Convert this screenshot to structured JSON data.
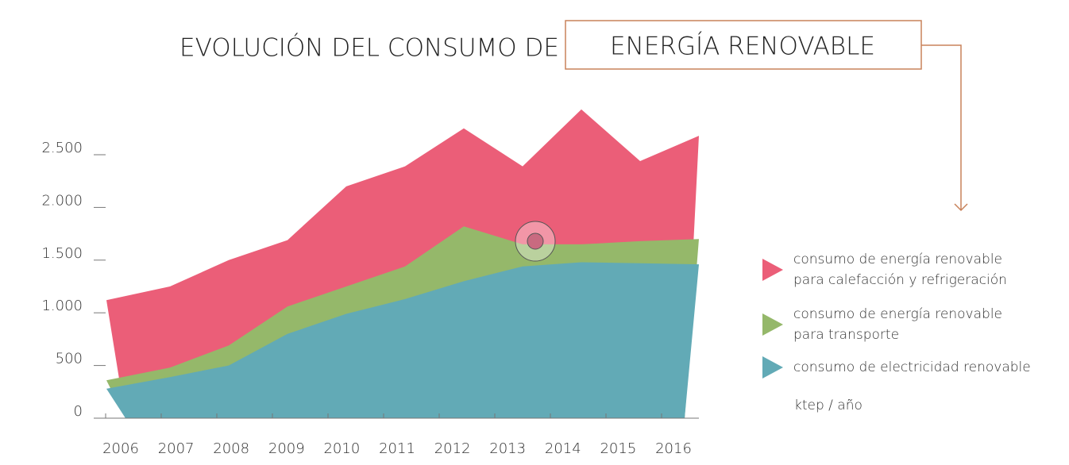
{
  "chart_data": {
    "type": "area",
    "title": "EVOLUCIÓN DEL CONSUMO DE",
    "title_highlight": "ENERGÍA RENOVABLE",
    "unit": "ktep / año",
    "categories": [
      "2006",
      "2007",
      "2008",
      "2009",
      "2010",
      "2011",
      "2012",
      "2013",
      "2014",
      "2015",
      "2016"
    ],
    "series": [
      {
        "name": "consumo de energía renovable para calefacción y refrigeración",
        "name_lines": [
          "consumo de energía renovable",
          "para calefacción y refrigeración"
        ],
        "color": "#eb5e78",
        "values": [
          1120,
          1250,
          1500,
          1690,
          2200,
          2390,
          2750,
          2390,
          2930,
          2440,
          2680
        ]
      },
      {
        "name": "consumo de energía renovable para transporte",
        "name_lines": [
          "consumo de energía renovable",
          "para transporte"
        ],
        "color": "#95b86a",
        "values": [
          360,
          480,
          690,
          1060,
          1250,
          1440,
          1820,
          1650,
          1650,
          1680,
          1700
        ]
      },
      {
        "name": "consumo de electricidad renovable",
        "name_lines": [
          "consumo de electricidad renovable"
        ],
        "color": "#62aab6",
        "values": [
          280,
          390,
          500,
          800,
          990,
          1130,
          1300,
          1440,
          1480,
          1470,
          1460
        ]
      }
    ],
    "ylim": [
      0,
      2500
    ],
    "yticks": [
      0,
      500,
      {
        "value": 1000,
        "label": "1.000"
      },
      {
        "value": 1500,
        "label": "1.500"
      },
      {
        "value": 2000,
        "label": "2.000"
      },
      {
        "value": 2500,
        "label": "2.500"
      }
    ]
  }
}
